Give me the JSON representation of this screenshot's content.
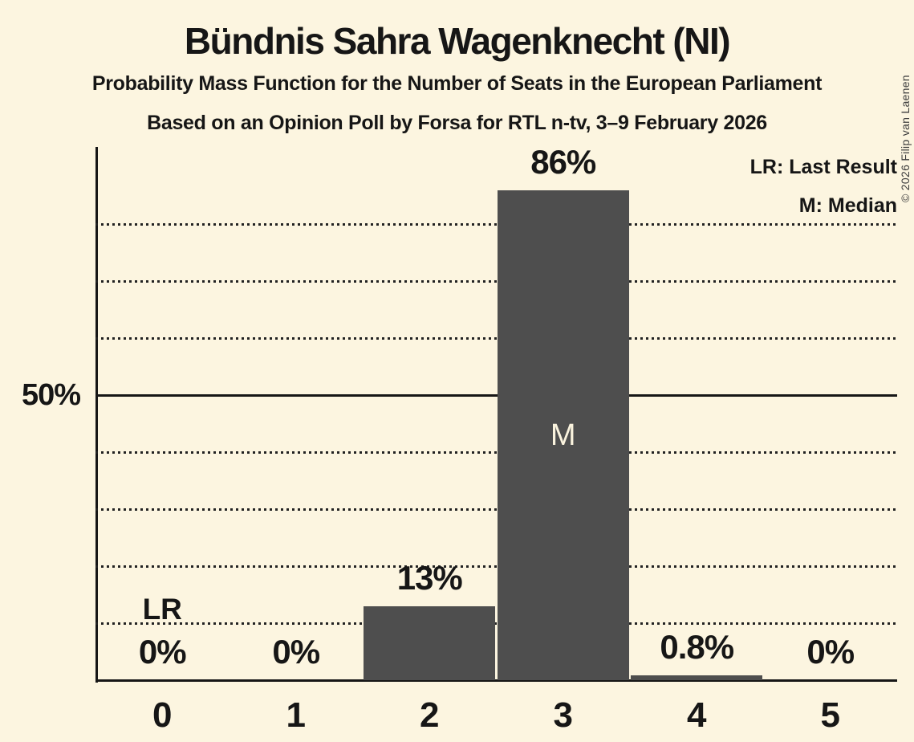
{
  "header": {
    "title": "Bündnis Sahra Wagenknecht (NI)",
    "subtitle": "Probability Mass Function for the Number of Seats in the European Parliament",
    "source_line": "Based on an Opinion Poll by Forsa for RTL n-tv, 3–9 February 2026"
  },
  "legend": {
    "lr": "LR: Last Result",
    "m": "M: Median"
  },
  "copyright": {
    "text": "© 2026 Filip van Laenen"
  },
  "colors": {
    "background": "#fcf5e0",
    "bar": "#4e4e4e",
    "text": "#161616",
    "axis": "#161616",
    "grid_dotted": "#222222",
    "bar_inner_text": "#faf3de",
    "copyright_text": "#3c3c3c"
  },
  "chart_data": {
    "type": "bar",
    "title": "Bündnis Sahra Wagenknecht (NI)",
    "categories": [
      "0",
      "1",
      "2",
      "3",
      "4",
      "5"
    ],
    "values": [
      0,
      0,
      13,
      86,
      0.8,
      0
    ],
    "bar_labels": [
      "0%",
      "0%",
      "13%",
      "86%",
      "0.8%",
      "0%"
    ],
    "xlabel": "",
    "ylabel": "",
    "ylim": [
      0,
      93.6
    ],
    "y_axis_tick": {
      "label": "50%",
      "value": 50
    },
    "gridlines_dotted_pct": [
      10,
      20,
      30,
      40,
      60,
      70,
      80
    ],
    "gridline_solid_pct": 50,
    "grid": "horizontal dotted",
    "legend_position": "top-right",
    "annotations": [
      {
        "category_index": 0,
        "text": "LR",
        "meaning": "Last Result",
        "placement": "above-baseline"
      },
      {
        "category_index": 3,
        "text": "M",
        "meaning": "Median",
        "placement": "inside-bar-center"
      }
    ]
  }
}
